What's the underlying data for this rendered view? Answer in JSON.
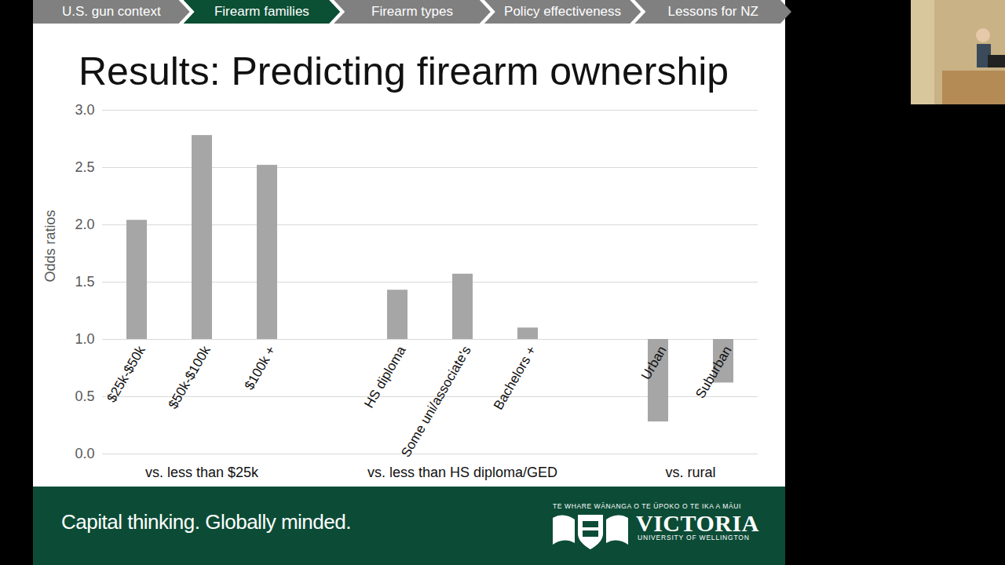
{
  "slide": {
    "nav": [
      "U.S. gun context",
      "Firearm families",
      "Firearm types",
      "Policy effectiveness",
      "Lessons for NZ"
    ],
    "nav_active": "Firearm families",
    "footer": {
      "tagline": "Capital thinking. Globally minded.",
      "logo_motto": "TE WHARE WĀNANGA O TE ŪPOKO O TE IKA A MĀUI",
      "logo_name": "VICTORIA",
      "logo_sub": "UNIVERSITY OF WELLINGTON"
    }
  },
  "chart_data": {
    "type": "bar",
    "title": "Results: Predicting firearm ownership",
    "categories": [
      "$25k-$50k",
      "$50k-$100k",
      "$100k +",
      null,
      "HS diploma",
      "Some uni/associate's",
      "Bachelors +",
      null,
      "Urban",
      "Suburban"
    ],
    "values": [
      2.04,
      2.78,
      2.52,
      null,
      1.43,
      1.57,
      1.1,
      null,
      0.28,
      0.62
    ],
    "baseline": 1,
    "groups": [
      {
        "label": "vs. less than $25k",
        "categories": [
          "$25k-$50k",
          "$50k-$100k",
          "$100k +"
        ]
      },
      {
        "label": "vs. less than HS diploma/GED",
        "categories": [
          "HS diploma",
          "Some uni/associate's",
          "Bachelors +"
        ]
      },
      {
        "label": "vs. rural",
        "categories": [
          "Urban",
          "Suburban"
        ]
      }
    ],
    "ylabel": "Odds ratios",
    "ylim": [
      0,
      3
    ],
    "yticks": [
      {
        "value": 0,
        "label": "0.0"
      },
      {
        "value": 0.5,
        "label": "0.5"
      },
      {
        "value": 1,
        "label": "1.0"
      },
      {
        "value": 1.5,
        "label": "1.5"
      },
      {
        "value": 2,
        "label": "2.0"
      },
      {
        "value": 2.5,
        "label": "2.5"
      },
      {
        "value": 3,
        "label": "3.0"
      }
    ],
    "grid": true,
    "color": "#a6a6a6"
  }
}
